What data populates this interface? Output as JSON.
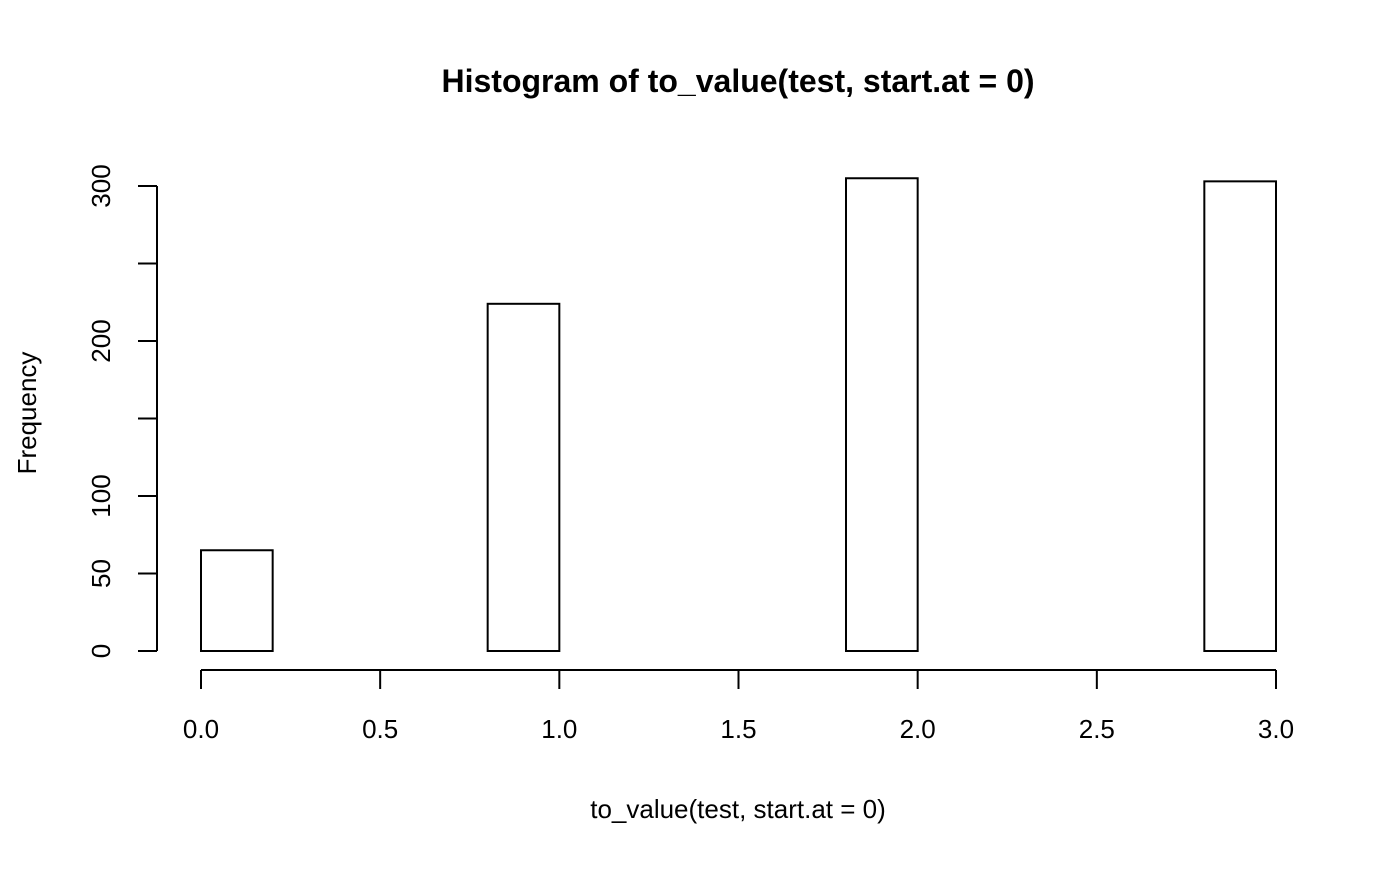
{
  "chart_data": {
    "type": "bar",
    "title": "Histogram of to_value(test, start.at = 0)",
    "xlabel": "to_value(test, start.at = 0)",
    "ylabel": "Frequency",
    "bins": [
      {
        "x0": 0.0,
        "x1": 0.2,
        "count": 65
      },
      {
        "x0": 0.2,
        "x1": 0.4,
        "count": 0
      },
      {
        "x0": 0.4,
        "x1": 0.6,
        "count": 0
      },
      {
        "x0": 0.6,
        "x1": 0.8,
        "count": 0
      },
      {
        "x0": 0.8,
        "x1": 1.0,
        "count": 224
      },
      {
        "x0": 1.0,
        "x1": 1.2,
        "count": 0
      },
      {
        "x0": 1.2,
        "x1": 1.4,
        "count": 0
      },
      {
        "x0": 1.4,
        "x1": 1.6,
        "count": 0
      },
      {
        "x0": 1.6,
        "x1": 1.8,
        "count": 0
      },
      {
        "x0": 1.8,
        "x1": 2.0,
        "count": 305
      },
      {
        "x0": 2.0,
        "x1": 2.2,
        "count": 0
      },
      {
        "x0": 2.2,
        "x1": 2.4,
        "count": 0
      },
      {
        "x0": 2.4,
        "x1": 2.6,
        "count": 0
      },
      {
        "x0": 2.6,
        "x1": 2.8,
        "count": 0
      },
      {
        "x0": 2.8,
        "x1": 3.0,
        "count": 303
      }
    ],
    "xlim": [
      0,
      3
    ],
    "ylim": [
      0,
      305
    ],
    "x_ticks": [
      0.0,
      0.5,
      1.0,
      1.5,
      2.0,
      2.5,
      3.0
    ],
    "x_tick_labels": [
      "0.0",
      "0.5",
      "1.0",
      "1.5",
      "2.0",
      "2.5",
      "3.0"
    ],
    "y_ticks": [
      0,
      50,
      100,
      150,
      200,
      250,
      300
    ],
    "y_tick_labels": [
      "0",
      "50",
      "100",
      "",
      "200",
      "",
      "300"
    ],
    "grid": false,
    "bar_fill": "#ffffff",
    "bar_stroke": "#000000"
  }
}
